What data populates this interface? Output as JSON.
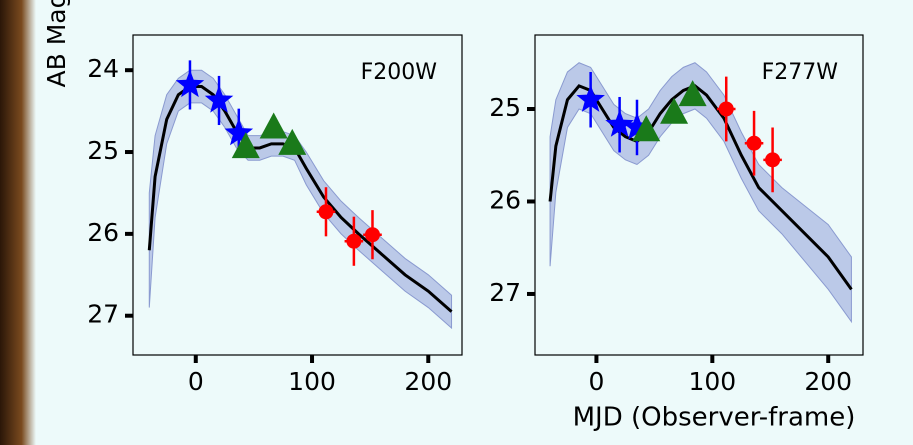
{
  "chart_data": [
    {
      "type": "line",
      "title": "F200W",
      "ylabel": "AB Mag",
      "invert_y": true,
      "xlim": [
        -54,
        229
      ],
      "ylim": [
        23.57,
        27.48
      ],
      "xticks": [
        0,
        100,
        200
      ],
      "yticks": [
        24,
        25,
        26,
        27
      ],
      "series": [
        {
          "color": "#000000",
          "band_color": "#b5c3e6",
          "x": [
            -40,
            -35,
            -25,
            -15,
            -5,
            5,
            15,
            25,
            35,
            45,
            55,
            65,
            75,
            85,
            95,
            110,
            125,
            140,
            160,
            180,
            200,
            220
          ],
          "values": [
            26.2,
            25.3,
            24.6,
            24.3,
            24.2,
            24.2,
            24.3,
            24.5,
            24.75,
            24.95,
            24.95,
            24.9,
            24.9,
            24.95,
            25.2,
            25.55,
            25.8,
            26.0,
            26.25,
            26.5,
            26.7,
            26.95
          ],
          "band_lower": [
            25.5,
            24.8,
            24.3,
            24.1,
            24.0,
            24.0,
            24.1,
            24.3,
            24.55,
            24.8,
            24.8,
            24.75,
            24.75,
            24.8,
            25.0,
            25.35,
            25.6,
            25.8,
            26.05,
            26.3,
            26.5,
            26.75
          ],
          "band_upper": [
            26.9,
            25.8,
            24.9,
            24.5,
            24.4,
            24.4,
            24.5,
            24.7,
            24.95,
            25.1,
            25.1,
            25.05,
            25.05,
            25.1,
            25.4,
            25.75,
            26.0,
            26.2,
            26.45,
            26.7,
            26.9,
            27.15
          ]
        },
        {
          "color": "#0000ff",
          "marker": "star",
          "x": [
            -5,
            20,
            37
          ],
          "values": [
            24.18,
            24.37,
            24.77
          ],
          "yerr": [
            0.3,
            0.3,
            0.3
          ]
        },
        {
          "color": "#1a7a1a",
          "marker": "triangle",
          "x": [
            43,
            67,
            83
          ],
          "values": [
            24.94,
            24.7,
            24.9
          ]
        },
        {
          "color": "#ff0000",
          "marker": "circle",
          "x": [
            112,
            136,
            152
          ],
          "values": [
            25.73,
            26.09,
            26.01
          ],
          "yerr": [
            0.3,
            0.3,
            0.3
          ],
          "xerr": [
            8,
            8,
            8
          ]
        }
      ]
    },
    {
      "type": "line",
      "title": "F277W",
      "xlabel": "MJD (Observer-frame)",
      "invert_y": true,
      "xlim": [
        -53,
        230
      ],
      "ylim": [
        24.2,
        27.66
      ],
      "xticks": [
        0,
        100,
        200
      ],
      "yticks": [
        25,
        26,
        27
      ],
      "series": [
        {
          "color": "#000000",
          "band_color": "#b5c3e6",
          "x": [
            -40,
            -35,
            -25,
            -15,
            -5,
            5,
            15,
            25,
            35,
            45,
            55,
            65,
            75,
            85,
            95,
            110,
            125,
            140,
            160,
            180,
            200,
            220
          ],
          "values": [
            26.0,
            25.4,
            24.9,
            24.75,
            24.8,
            25.0,
            25.2,
            25.3,
            25.35,
            25.25,
            25.05,
            24.9,
            24.8,
            24.75,
            24.85,
            25.1,
            25.5,
            25.85,
            26.1,
            26.35,
            26.6,
            26.95
          ],
          "band_lower": [
            25.3,
            24.9,
            24.6,
            24.5,
            24.55,
            24.75,
            24.95,
            25.05,
            25.1,
            25.0,
            24.8,
            24.65,
            24.55,
            24.5,
            24.6,
            24.85,
            25.25,
            25.6,
            25.85,
            26.05,
            26.25,
            26.6
          ],
          "band_upper": [
            26.7,
            25.9,
            25.2,
            25.0,
            25.05,
            25.25,
            25.45,
            25.55,
            25.6,
            25.5,
            25.3,
            25.15,
            25.05,
            25.0,
            25.1,
            25.35,
            25.75,
            26.1,
            26.35,
            26.65,
            26.95,
            27.3
          ]
        },
        {
          "color": "#0000ff",
          "marker": "star",
          "x": [
            -5,
            20,
            35
          ],
          "values": [
            24.9,
            25.17,
            25.2
          ],
          "yerr": [
            0.3,
            0.3,
            0.3
          ]
        },
        {
          "color": "#1a7a1a",
          "marker": "triangle",
          "x": [
            43,
            67,
            83
          ],
          "values": [
            25.23,
            25.04,
            24.85
          ]
        },
        {
          "color": "#ff0000",
          "marker": "circle",
          "x": [
            112,
            136,
            152
          ],
          "values": [
            25.0,
            25.37,
            25.55
          ],
          "yerr": [
            0.35,
            0.35,
            0.35
          ],
          "xerr": [
            8,
            8,
            8
          ]
        }
      ]
    }
  ]
}
